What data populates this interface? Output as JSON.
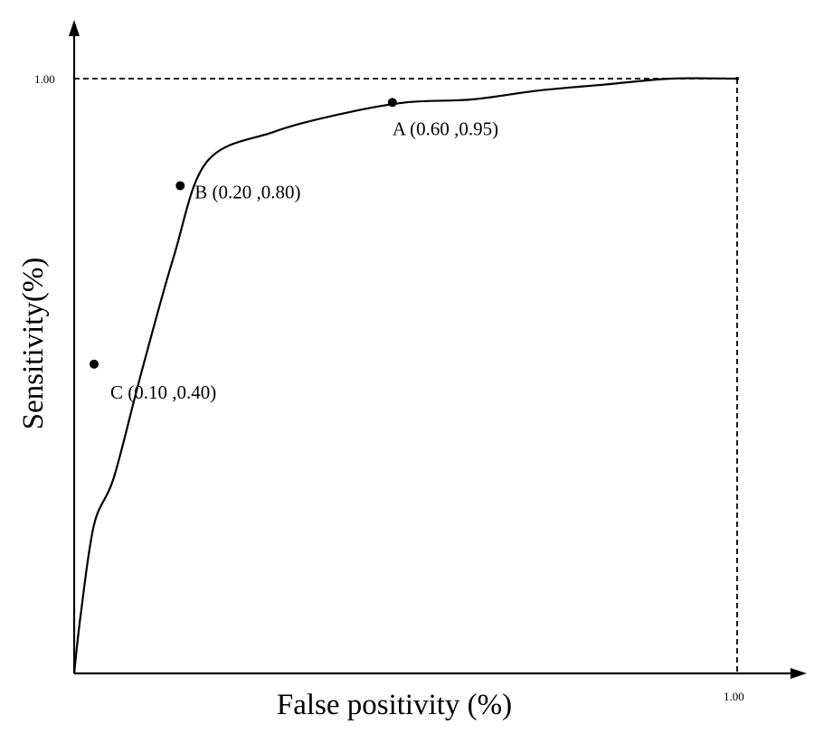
{
  "chart_data": {
    "type": "line",
    "title": "",
    "xlabel": "False positivity (%)",
    "ylabel": "Sensitivity(%)",
    "xlim": [
      0,
      1
    ],
    "ylim": [
      0,
      1
    ],
    "x_tick_labels": [
      "1.00"
    ],
    "y_tick_labels": [
      "1.00"
    ],
    "grid": false,
    "series": [
      {
        "x": [
          0,
          0.01,
          0.03,
          0.06,
          0.1,
          0.15,
          0.2,
          0.3,
          0.4,
          0.5,
          0.6,
          0.7,
          0.8,
          0.9,
          1.0
        ],
        "y": [
          0,
          0.1,
          0.25,
          0.33,
          0.5,
          0.7,
          0.86,
          0.91,
          0.94,
          0.96,
          0.965,
          0.98,
          0.99,
          1.0,
          1.0
        ]
      }
    ],
    "points": [
      {
        "id": "A",
        "x": 0.48,
        "y": 0.96,
        "label": "A (0.60 ,0.95)"
      },
      {
        "id": "B",
        "x": 0.16,
        "y": 0.82,
        "label": "B (0.20 ,0.80)"
      },
      {
        "id": "C",
        "x": 0.03,
        "y": 0.52,
        "label": "C (0.10 ,0.40)"
      }
    ],
    "reference_lines": [
      {
        "type": "horizontal",
        "y": 1.0,
        "style": "dashed"
      },
      {
        "type": "vertical",
        "x": 1.0,
        "style": "dashed"
      }
    ]
  }
}
